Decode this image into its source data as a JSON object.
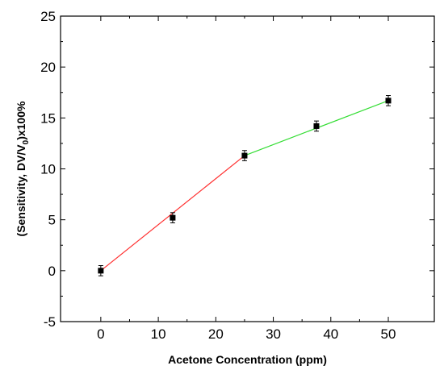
{
  "chart_data": {
    "type": "scatter",
    "xlabel": "Acetone Concentration (ppm)",
    "ylabel_parts": [
      "(Sensitivity, DV/V",
      "0",
      ")x100%"
    ],
    "xlim": [
      -7,
      58
    ],
    "ylim": [
      -5,
      25
    ],
    "x_ticks": [
      0,
      10,
      20,
      30,
      40,
      50
    ],
    "y_ticks": [
      -5,
      0,
      5,
      10,
      15,
      20,
      25
    ],
    "grid": false,
    "points": [
      {
        "x": 0,
        "y": 0.0,
        "err": 0.5
      },
      {
        "x": 12.5,
        "y": 5.2,
        "err": 0.5
      },
      {
        "x": 25,
        "y": 11.3,
        "err": 0.5
      },
      {
        "x": 37.5,
        "y": 14.2,
        "err": 0.5
      },
      {
        "x": 50,
        "y": 16.7,
        "err": 0.5
      }
    ],
    "fit_lines": [
      {
        "x": [
          0,
          25
        ],
        "y": [
          0.0,
          11.3
        ],
        "color": "#ff3030"
      },
      {
        "x": [
          25,
          50
        ],
        "y": [
          11.3,
          16.7
        ],
        "color": "#33dd33"
      }
    ],
    "marker_color": "#000000"
  }
}
